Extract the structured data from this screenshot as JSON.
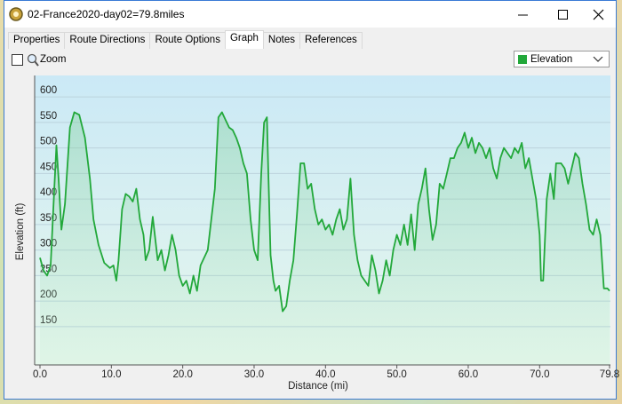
{
  "window": {
    "title": "02-France2020-day02=79.8miles"
  },
  "tabs": [
    "Properties",
    "Route Directions",
    "Route Options",
    "Graph",
    "Notes",
    "References"
  ],
  "selected_tab": 3,
  "toolbar": {
    "zoom_label": "Zoom"
  },
  "chart_data": {
    "type": "area",
    "x_label": "Distance  (mi)",
    "y_label": "Elevation (ft)",
    "x": [
      0,
      0.5,
      1,
      1.5,
      2,
      2.3,
      2.6,
      3,
      3.5,
      4.2,
      4.8,
      5.5,
      6.3,
      7,
      7.5,
      8.2,
      9,
      9.8,
      10.3,
      10.7,
      11,
      11.5,
      12,
      12.5,
      13,
      13.5,
      14,
      14.5,
      14.8,
      15.3,
      15.8,
      16.5,
      17,
      17.5,
      18,
      18.5,
      19,
      19.5,
      20,
      20.5,
      21,
      21.5,
      22,
      22.5,
      23.5,
      24,
      24.5,
      25,
      25.5,
      26,
      26.5,
      27,
      27.5,
      28,
      28.5,
      29,
      29.5,
      30,
      30.5,
      31,
      31.4,
      31.8,
      32,
      32.3,
      32.7,
      33,
      33.5,
      34,
      34.5,
      35,
      35.5,
      36,
      36.5,
      37,
      37.5,
      38,
      38.5,
      39,
      39.5,
      40,
      40.5,
      41,
      41.5,
      42,
      42.5,
      43,
      43.5,
      44,
      44.5,
      45,
      45.5,
      46,
      46.5,
      47,
      47.5,
      48,
      48.5,
      49,
      49.5,
      50,
      50.5,
      51,
      51.5,
      52,
      52.5,
      53,
      53.5,
      54,
      54.5,
      55,
      55.5,
      56,
      56.5,
      57,
      57.5,
      58,
      58.5,
      59,
      59.5,
      60,
      60.5,
      61,
      61.5,
      62,
      62.5,
      63,
      63.5,
      64,
      64.5,
      65,
      65.5,
      66,
      66.5,
      67,
      67.5,
      68,
      68.5,
      69,
      69.5,
      70,
      70.2,
      70.5,
      71,
      71.5,
      72,
      72.3,
      73,
      73.5,
      74,
      74.5,
      75,
      75.5,
      76,
      76.5,
      77,
      77.5,
      78,
      78.5,
      79,
      79.5,
      79.8
    ],
    "series": [
      {
        "name": "Elevation",
        "color": "#22a83a",
        "values": [
          285,
          260,
          250,
          270,
          420,
          505,
          440,
          340,
          390,
          540,
          570,
          565,
          520,
          440,
          360,
          310,
          275,
          265,
          270,
          240,
          280,
          380,
          410,
          405,
          395,
          420,
          360,
          330,
          280,
          300,
          365,
          280,
          300,
          260,
          290,
          330,
          300,
          250,
          230,
          240,
          215,
          250,
          220,
          270,
          300,
          360,
          420,
          560,
          570,
          555,
          540,
          535,
          520,
          500,
          470,
          450,
          360,
          300,
          280,
          450,
          550,
          560,
          450,
          290,
          240,
          220,
          230,
          180,
          190,
          240,
          280,
          370,
          470,
          470,
          420,
          430,
          380,
          350,
          360,
          340,
          350,
          330,
          360,
          380,
          340,
          360,
          440,
          330,
          280,
          250,
          240,
          230,
          290,
          260,
          215,
          240,
          280,
          250,
          300,
          330,
          310,
          350,
          310,
          370,
          300,
          390,
          420,
          460,
          380,
          320,
          350,
          430,
          420,
          450,
          480,
          480,
          500,
          510,
          530,
          500,
          520,
          490,
          510,
          500,
          480,
          500,
          460,
          440,
          480,
          500,
          490,
          480,
          500,
          490,
          510,
          460,
          480,
          440,
          400,
          330,
          240,
          240,
          400,
          450,
          400,
          470,
          470,
          460,
          430,
          460,
          490,
          480,
          430,
          390,
          340,
          330,
          360,
          330,
          225,
          225,
          220
        ]
      }
    ],
    "xlim": [
      0,
      79.8
    ],
    "xticks": [
      {
        "value": 0,
        "label": "0.0"
      },
      {
        "value": 10,
        "label": "10.0"
      },
      {
        "value": 20,
        "label": "20.0"
      },
      {
        "value": 30,
        "label": "30.0"
      },
      {
        "value": 40,
        "label": "40.0"
      },
      {
        "value": 50,
        "label": "50.0"
      },
      {
        "value": 60,
        "label": "60.0"
      },
      {
        "value": 70,
        "label": "70.0"
      },
      79.8
    ],
    "ylim": [
      75,
      635
    ],
    "yticks": [
      150,
      200,
      250,
      300,
      350,
      400,
      450,
      500,
      550,
      600
    ],
    "grid": true
  }
}
